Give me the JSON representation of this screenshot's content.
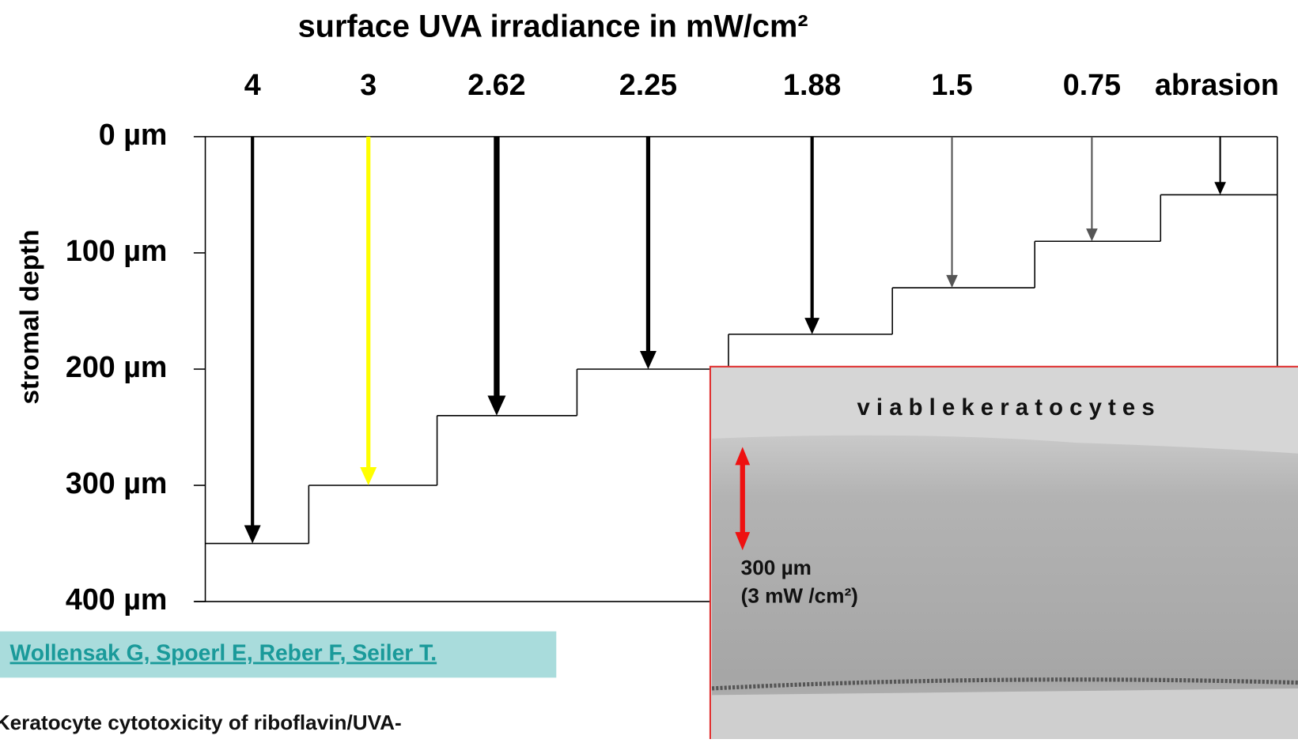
{
  "chart_data": {
    "type": "step",
    "title": "surface  UVA irradiance in mW/cm²",
    "y_label": "stromal depth",
    "categories": [
      "4",
      "3",
      "2.62",
      "2.25",
      "1.88",
      "1.5",
      "0.75",
      "abrasion"
    ],
    "values": [
      350,
      300,
      240,
      200,
      170,
      130,
      90,
      50
    ],
    "colors": [
      "#000000",
      "#ffff00",
      "#000000",
      "#000000",
      "#000000",
      "#555555",
      "#555555",
      "#000000"
    ],
    "ylim": [
      0,
      400
    ],
    "y_inverted": true,
    "yticks": [
      {
        "value": 0,
        "label": "0 µm"
      },
      {
        "value": 100,
        "label": "100 µm"
      },
      {
        "value": 200,
        "label": "200 µm"
      },
      {
        "value": 300,
        "label": "300 µm"
      },
      {
        "value": 400,
        "label": "400 µm"
      }
    ]
  },
  "inset": {
    "caption": "v i a b l e    k e r a t o c y t e s",
    "scale_label": "300 µm",
    "scale_note": "(3 mW /cm²)"
  },
  "citation": {
    "authors": "Wollensak G, Spoerl E, Reber F, Seiler T.",
    "title": "Keratocyte cytotoxicity of riboflavin/UVA-"
  }
}
